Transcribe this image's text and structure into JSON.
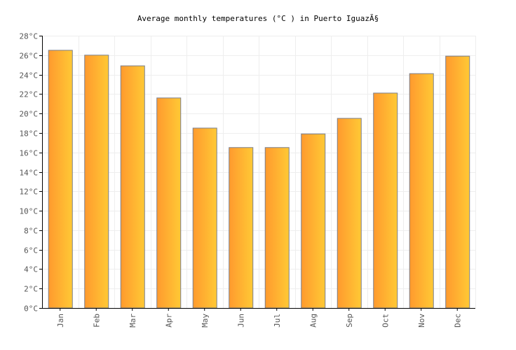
{
  "chart_data": {
    "type": "bar",
    "title": "Average monthly temperatures (°C ) in Puerto IguazÃ§",
    "xlabel": "",
    "ylabel": "",
    "categories": [
      "Jan",
      "Feb",
      "Mar",
      "Apr",
      "May",
      "Jun",
      "Jul",
      "Aug",
      "Sep",
      "Oct",
      "Nov",
      "Dec"
    ],
    "values": [
      26.5,
      26.0,
      24.9,
      21.6,
      18.5,
      16.5,
      16.5,
      17.9,
      19.5,
      22.1,
      24.1,
      25.9
    ],
    "ylim": [
      0,
      28
    ],
    "yticks": [
      "0°C",
      "2°C",
      "4°C",
      "6°C",
      "8°C",
      "10°C",
      "12°C",
      "14°C",
      "16°C",
      "18°C",
      "20°C",
      "22°C",
      "24°C",
      "26°C",
      "28°C"
    ],
    "grid": true,
    "legend": "none",
    "colors": {
      "bar_start": "#ff9a2e",
      "bar_end": "#ffc935",
      "bar_stroke": "#7a7f8c",
      "grid": "#eeeeee",
      "axis": "#000000",
      "label": "#555555"
    }
  }
}
